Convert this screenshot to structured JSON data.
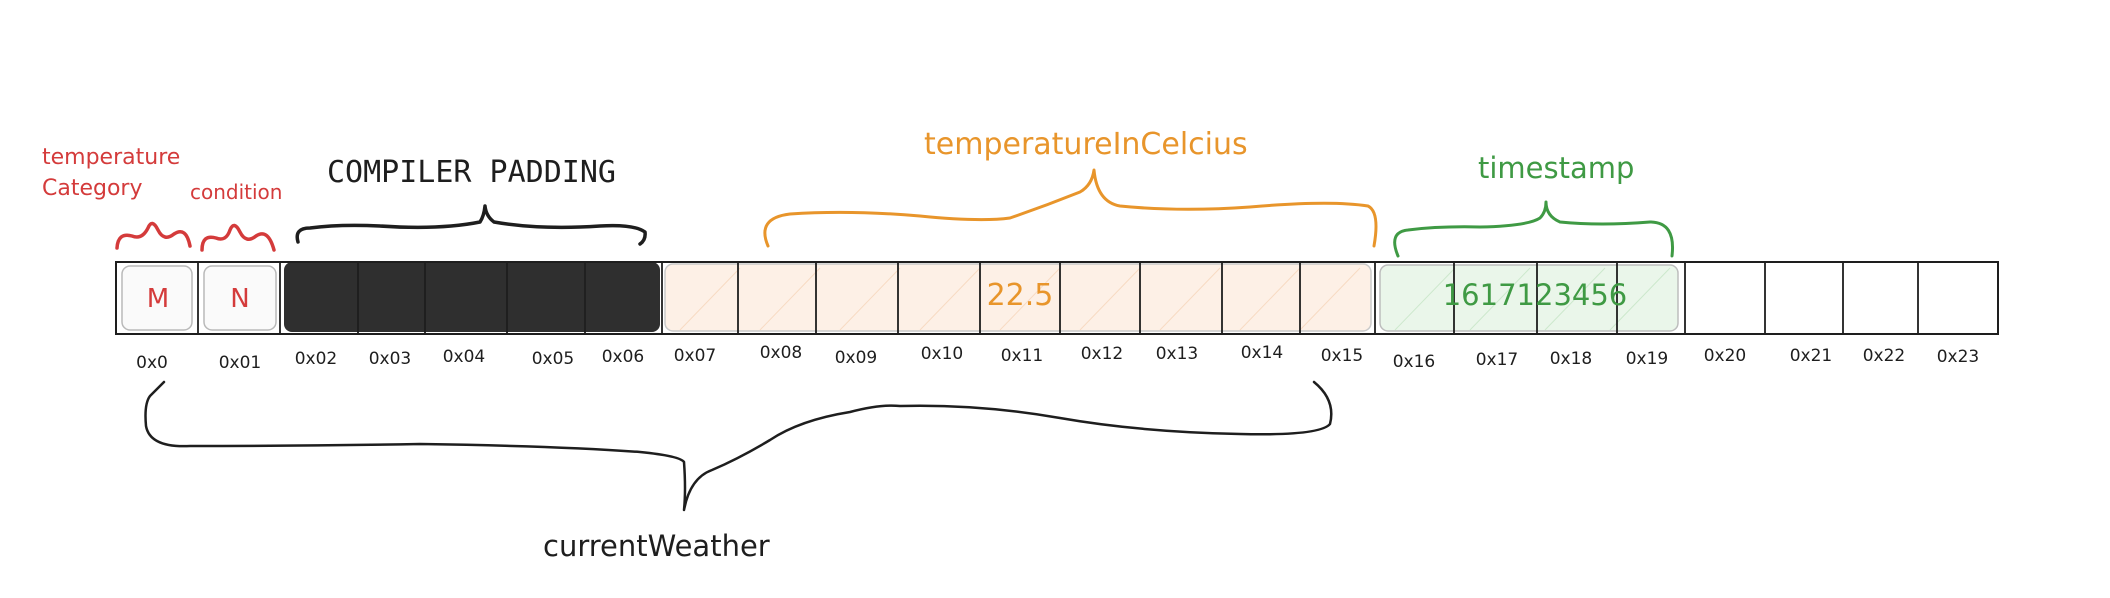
{
  "labels": {
    "temperature_category": [
      "temperature",
      "Category"
    ],
    "condition": "condition",
    "compiler_padding": "COMPILER PADDING",
    "temperature_in_celcius": "temperatureInCelcius",
    "timestamp": "timestamp",
    "current_weather": "currentWeather"
  },
  "values": {
    "temperature_category": "M",
    "condition": "N",
    "temperature_in_celcius": "22.5",
    "timestamp": "1617123456"
  },
  "addresses": [
    "0x0",
    "0x01",
    "0x02",
    "0x03",
    "0x04",
    "0x05",
    "0x06",
    "0x07",
    "0x08",
    "0x09",
    "0x10",
    "0x11",
    "0x12",
    "0x13",
    "0x14",
    "0x15",
    "0x16",
    "0x17",
    "0x18",
    "0x19",
    "0x20",
    "0x21",
    "0x22",
    "0x23"
  ],
  "colors": {
    "red": "#d43b3b",
    "orange": "#e8952b",
    "green": "#3f9a44",
    "ink": "#1e1e1e",
    "padding_fill": "#2f2f2f",
    "orange_fill": "#fdf0e6",
    "green_fill": "#eaf6ea"
  }
}
